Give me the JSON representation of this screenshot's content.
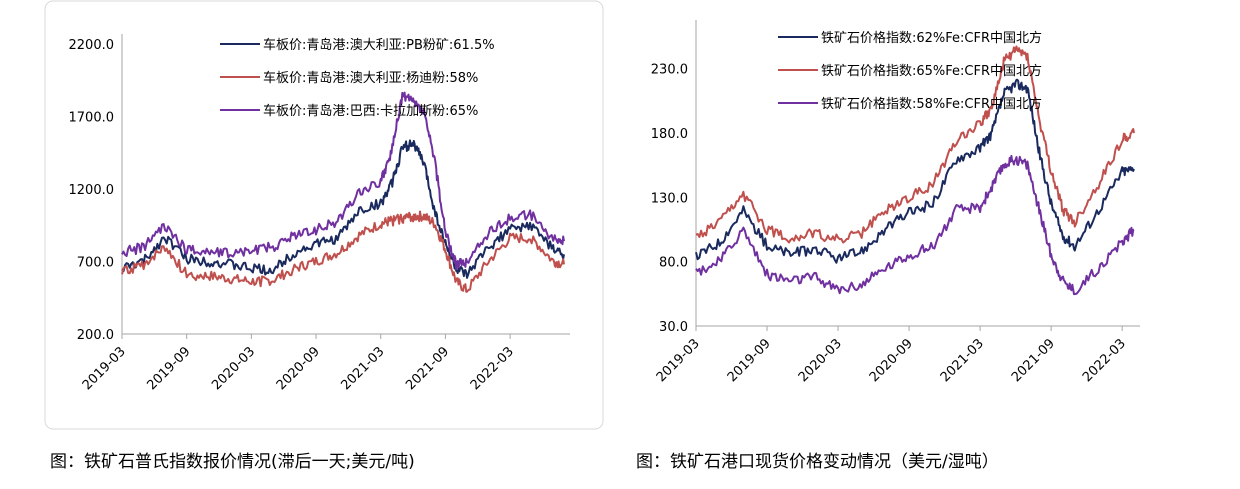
{
  "captions": {
    "left": "图：铁矿石普氏指数报价情况(滞后一天;美元/吨)",
    "right": "图：铁矿石港口现货价格变动情况（美元/湿吨）"
  },
  "colors": {
    "navy": "#1a2a5e",
    "red": "#c0504d",
    "purple": "#7030a0",
    "axis": "#a6a6a6",
    "text": "#000000"
  },
  "chart_data": [
    {
      "type": "line",
      "title": "",
      "xlabel": "",
      "ylabel": "",
      "ylim": [
        200,
        2200
      ],
      "yticks": [
        "2200.0",
        "1700.0",
        "1200.0",
        "700.0",
        "200.0"
      ],
      "xticks": [
        "2019-03",
        "2019-09",
        "2020-03",
        "2020-09",
        "2021-03",
        "2021-09",
        "2022-03"
      ],
      "grid": false,
      "legend": "top-right",
      "x": [
        "2019-03",
        "2019-05",
        "2019-07",
        "2019-09",
        "2019-11",
        "2020-01",
        "2020-03",
        "2020-05",
        "2020-07",
        "2020-09",
        "2020-11",
        "2021-01",
        "2021-03",
        "2021-04",
        "2021-05",
        "2021-06",
        "2021-07",
        "2021-08",
        "2021-09",
        "2021-10",
        "2021-11",
        "2022-01",
        "2022-03",
        "2022-05",
        "2022-07",
        "2022-08"
      ],
      "series": [
        {
          "name": "车板价:青岛港:澳大利亚:PB粉矿:61.5%",
          "color": "navy",
          "values": [
            650,
            700,
            870,
            720,
            700,
            680,
            650,
            640,
            760,
            820,
            860,
            1050,
            1100,
            1230,
            1480,
            1520,
            1380,
            1050,
            820,
            650,
            600,
            800,
            920,
            950,
            780,
            750
          ]
        },
        {
          "name": "车板价:青岛港:澳大利亚:杨迪粉:58%",
          "color": "red",
          "values": [
            620,
            680,
            800,
            610,
            600,
            580,
            560,
            570,
            650,
            700,
            760,
            880,
            960,
            980,
            1000,
            1010,
            1010,
            960,
            780,
            560,
            500,
            700,
            860,
            860,
            700,
            680
          ]
        },
        {
          "name": "车板价:青岛港:巴西:卡拉加斯粉:65%",
          "color": "purple",
          "values": [
            760,
            800,
            950,
            780,
            770,
            760,
            780,
            800,
            880,
            920,
            980,
            1180,
            1250,
            1450,
            1850,
            1800,
            1730,
            1400,
            900,
            680,
            700,
            900,
            1000,
            1020,
            850,
            840
          ]
        }
      ]
    },
    {
      "type": "line",
      "title": "",
      "xlabel": "",
      "ylabel": "",
      "ylim": [
        30,
        260
      ],
      "yticks": [
        "230.0",
        "180.0",
        "130.0",
        "80.0",
        "30.0"
      ],
      "xticks": [
        "2019-03",
        "2019-09",
        "2020-03",
        "2020-09",
        "2021-03",
        "2021-09",
        "2022-03"
      ],
      "grid": false,
      "legend": "top",
      "x": [
        "2019-03",
        "2019-05",
        "2019-07",
        "2019-09",
        "2019-11",
        "2020-01",
        "2020-03",
        "2020-05",
        "2020-07",
        "2020-09",
        "2020-11",
        "2021-01",
        "2021-03",
        "2021-04",
        "2021-05",
        "2021-06",
        "2021-07",
        "2021-08",
        "2021-09",
        "2021-10",
        "2021-11",
        "2022-01",
        "2022-03",
        "2022-04"
      ],
      "series": [
        {
          "name": "铁矿石价格指数:62%Fe:CFR中国北方",
          "color": "navy",
          "values": [
            84,
            95,
            120,
            92,
            86,
            90,
            82,
            88,
            105,
            118,
            125,
            160,
            168,
            180,
            210,
            218,
            215,
            165,
            125,
            100,
            92,
            120,
            150,
            152
          ]
        },
        {
          "name": "铁矿石价格指数:65%Fe:CFR中国北方",
          "color": "red",
          "values": [
            98,
            110,
            132,
            105,
            98,
            102,
            97,
            102,
            120,
            130,
            140,
            175,
            188,
            200,
            235,
            245,
            240,
            190,
            150,
            120,
            110,
            140,
            175,
            180
          ]
        },
        {
          "name": "铁矿石价格指数:58%Fe:CFR中国北方",
          "color": "purple",
          "values": [
            72,
            80,
            105,
            70,
            65,
            68,
            58,
            62,
            75,
            85,
            92,
            120,
            122,
            138,
            155,
            160,
            155,
            120,
            85,
            65,
            57,
            75,
            95,
            105
          ]
        }
      ]
    }
  ]
}
